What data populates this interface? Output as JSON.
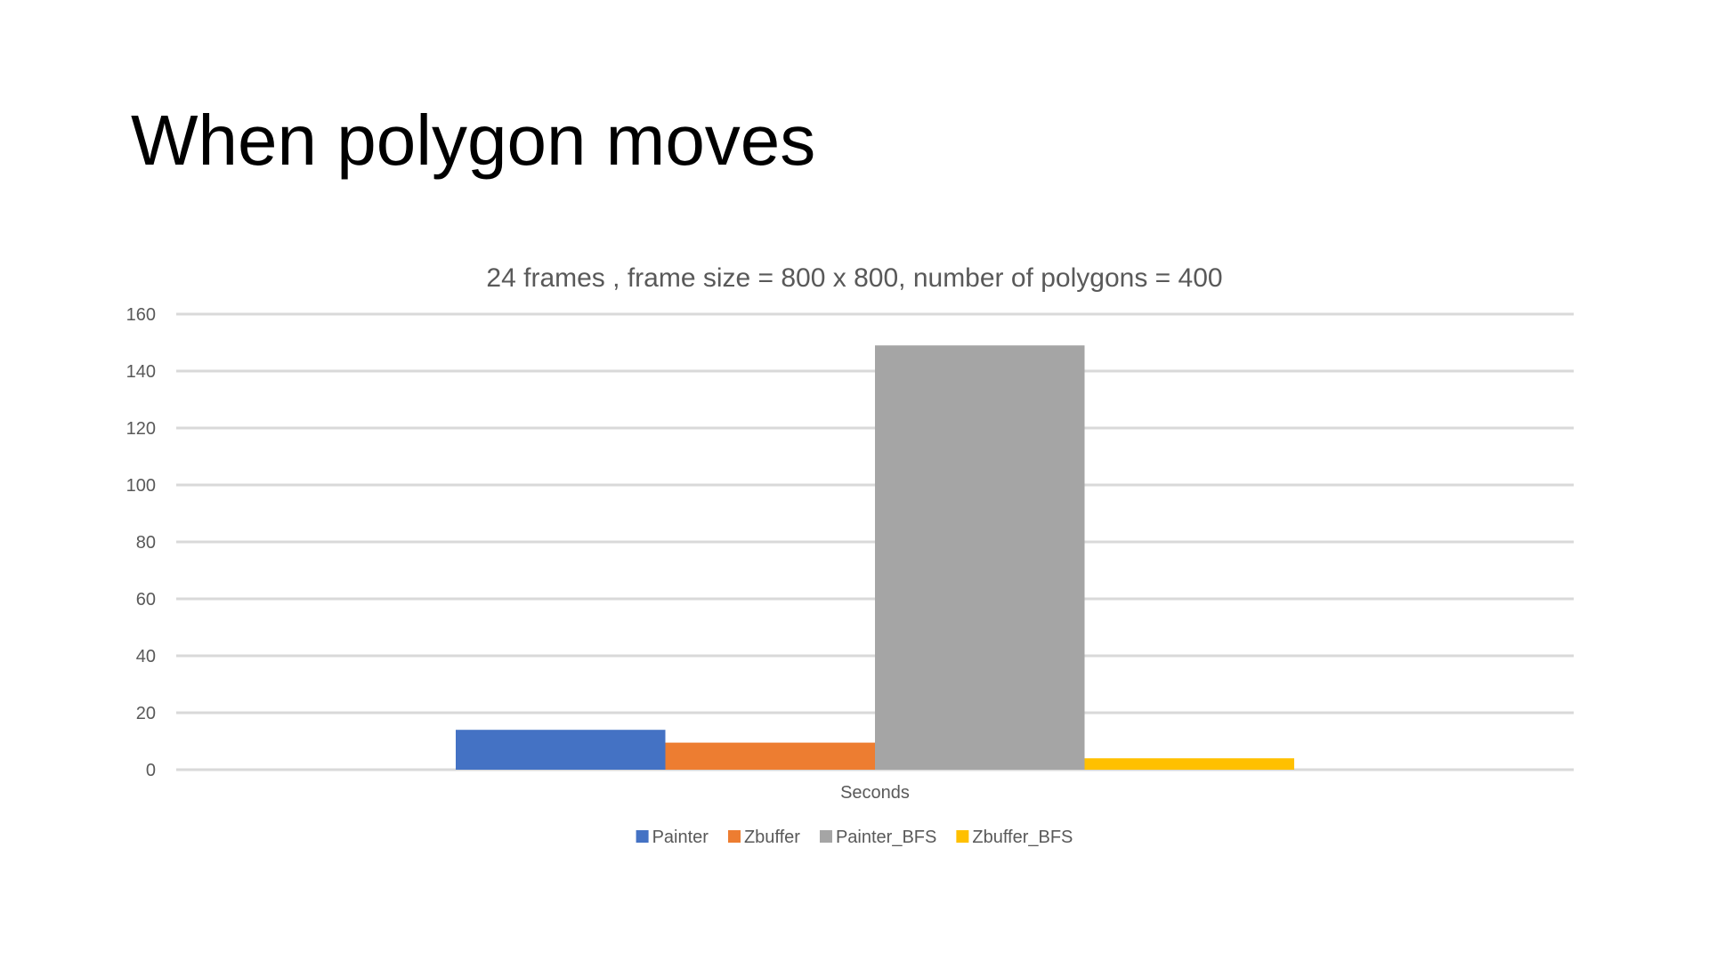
{
  "slide": {
    "title": "When polygon moves"
  },
  "chart_data": {
    "type": "bar",
    "title": "24 frames , frame size = 800 x 800, number of polygons = 400",
    "categories": [
      "Seconds"
    ],
    "xlabel": "",
    "ylabel": "",
    "ylim": [
      0,
      160
    ],
    "yticks": [
      "0",
      "20",
      "40",
      "60",
      "80",
      "100",
      "120",
      "140",
      "160"
    ],
    "grid": true,
    "legend_position": "bottom",
    "series": [
      {
        "name": "Painter",
        "values": [
          14
        ],
        "color": "#4472C4"
      },
      {
        "name": "Zbuffer",
        "values": [
          9.5
        ],
        "color": "#ED7D31"
      },
      {
        "name": "Painter_BFS",
        "values": [
          149
        ],
        "color": "#A5A5A5"
      },
      {
        "name": "Zbuffer_BFS",
        "values": [
          4
        ],
        "color": "#FFC000"
      }
    ]
  }
}
